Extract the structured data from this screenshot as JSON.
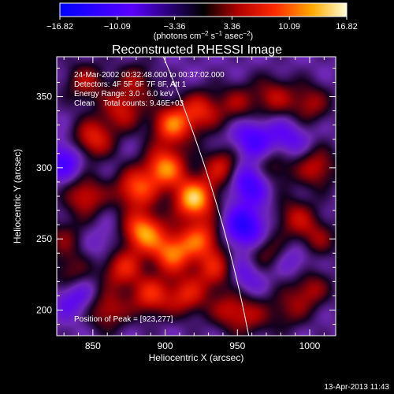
{
  "colorbar": {
    "ticks": [
      "−16.82",
      "−10.09",
      "−3.36",
      "3.36",
      "10.09",
      "16.82"
    ],
    "units_main": "(photons cm",
    "units_sup1": "−2",
    "units_mid": " s",
    "units_sup2": "−1",
    "units_tail": " asec",
    "units_sup3": "−2",
    "units_close": ")"
  },
  "chart_data": {
    "type": "heatmap",
    "title": "Reconstructed RHESSI Image",
    "xlabel": "Heliocentric X (arcsec)",
    "ylabel": "Heliocentric Y (arcsec)",
    "xlim": [
      825,
      1018
    ],
    "ylim": [
      182,
      378
    ],
    "xticks": [
      850,
      900,
      950,
      1000
    ],
    "yticks": [
      200,
      250,
      300,
      350
    ],
    "value_range": [
      -16.82,
      16.82
    ],
    "peak": [
      923,
      277
    ],
    "annotations": [
      "24-Mar-2002 00:32:48.000 to 00:37:02.000",
      "Detectors: 4F 5F 6F 7F 8F, Att 1",
      "Energy Range: 3.0 - 6.0 keV",
      "Clean    Total counts: 9.46E+03"
    ],
    "peak_label": "Position of Peak = [923,277]",
    "blobs": [
      {
        "x": 905,
        "y": 330,
        "v": 13
      },
      {
        "x": 920,
        "y": 278,
        "v": 16.8
      },
      {
        "x": 900,
        "y": 300,
        "v": 14
      },
      {
        "x": 885,
        "y": 255,
        "v": 15
      },
      {
        "x": 880,
        "y": 285,
        "v": 12
      },
      {
        "x": 905,
        "y": 240,
        "v": 13
      },
      {
        "x": 925,
        "y": 250,
        "v": 11
      },
      {
        "x": 935,
        "y": 228,
        "v": 9
      },
      {
        "x": 870,
        "y": 230,
        "v": 10
      },
      {
        "x": 860,
        "y": 200,
        "v": 8
      },
      {
        "x": 890,
        "y": 210,
        "v": 10
      },
      {
        "x": 915,
        "y": 210,
        "v": 9
      },
      {
        "x": 945,
        "y": 200,
        "v": 7
      },
      {
        "x": 845,
        "y": 280,
        "v": 9
      },
      {
        "x": 850,
        "y": 320,
        "v": 10
      },
      {
        "x": 870,
        "y": 340,
        "v": 8
      },
      {
        "x": 880,
        "y": 360,
        "v": 6
      },
      {
        "x": 845,
        "y": 360,
        "v": 7
      },
      {
        "x": 925,
        "y": 340,
        "v": 9
      },
      {
        "x": 950,
        "y": 345,
        "v": 6
      },
      {
        "x": 975,
        "y": 350,
        "v": 7
      },
      {
        "x": 1000,
        "y": 345,
        "v": 7
      },
      {
        "x": 1005,
        "y": 300,
        "v": 8
      },
      {
        "x": 990,
        "y": 265,
        "v": 7
      },
      {
        "x": 975,
        "y": 300,
        "v": 6
      },
      {
        "x": 940,
        "y": 300,
        "v": 9
      },
      {
        "x": 970,
        "y": 240,
        "v": 6
      },
      {
        "x": 1000,
        "y": 215,
        "v": 7
      },
      {
        "x": 1005,
        "y": 250,
        "v": 6
      },
      {
        "x": 985,
        "y": 200,
        "v": 5
      },
      {
        "x": 960,
        "y": 195,
        "v": 5
      },
      {
        "x": 835,
        "y": 225,
        "v": 6
      },
      {
        "x": 830,
        "y": 250,
        "v": 5
      }
    ],
    "troughs": [
      {
        "x": 958,
        "y": 290,
        "v": -9
      },
      {
        "x": 955,
        "y": 258,
        "v": -10
      },
      {
        "x": 960,
        "y": 320,
        "v": -7
      },
      {
        "x": 830,
        "y": 305,
        "v": -7
      },
      {
        "x": 838,
        "y": 210,
        "v": -6
      },
      {
        "x": 985,
        "y": 320,
        "v": -5
      },
      {
        "x": 955,
        "y": 225,
        "v": -5
      },
      {
        "x": 990,
        "y": 235,
        "v": -4
      },
      {
        "x": 860,
        "y": 245,
        "v": -3
      }
    ]
  },
  "footer": {
    "timestamp": "13-Apr-2013 11:43"
  }
}
